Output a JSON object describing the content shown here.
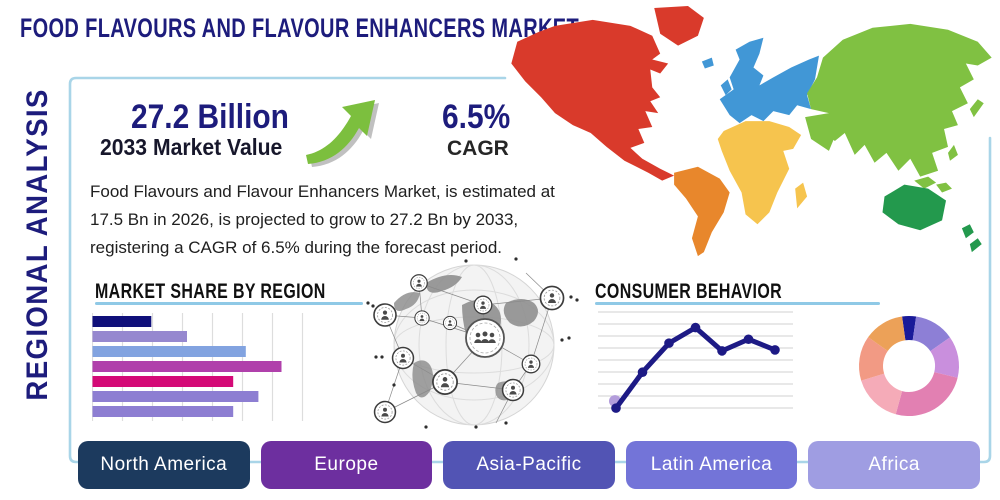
{
  "title": "FOOD FLAVOURS AND FLAVOUR ENHANCERS MARKET",
  "side_label": "REGIONAL ANALYSIS",
  "stats": {
    "market_value": "27.2 Billion",
    "market_value_label": "2033 Market Value",
    "cagr_value": "6.5%",
    "cagr_label": "CAGR"
  },
  "description": "Food Flavours and Flavour Enhancers Market, is estimated at 17.5 Bn in 2026, is projected to grow to 27.2 Bn by 2033, registering a CAGR of 6.5% during the forecast period.",
  "palette": {
    "navy": "#1d1c7c",
    "panel_border": "#a9d5e8",
    "heading_underline": "#8fc9e6",
    "arrow_green": "#7cbf3e",
    "arrow_shadow": "#969696"
  },
  "chart_data": [
    {
      "type": "bar",
      "title": "MARKET SHARE BY REGION",
      "orientation": "horizontal",
      "values": [
        28,
        45,
        73,
        90,
        67,
        79,
        67
      ],
      "bar_colors": [
        "#10107a",
        "#9688cf",
        "#82a3e0",
        "#b040ab",
        "#d40a77",
        "#8d7ed2",
        "#8d7ed2"
      ],
      "xlim": [
        0,
        105
      ],
      "grid": true,
      "tick_labels_shown": false
    },
    {
      "type": "line",
      "title": "CONSUMER BEHAVIOR",
      "x": [
        1,
        2,
        3,
        4,
        5,
        6,
        7
      ],
      "values": [
        0.4,
        4.1,
        7.1,
        8.7,
        6.3,
        7.5,
        6.4
      ],
      "ylim": [
        0,
        10
      ],
      "grid": true,
      "line_color": "#1d1a85",
      "start_dot_color": "#b39ddb",
      "tick_labels_shown": false
    },
    {
      "type": "pie",
      "style": "donut",
      "rotation": -8,
      "segments": [
        {
          "name": "navy",
          "value": 4.5,
          "color": "#1a1a99"
        },
        {
          "name": "purple",
          "value": 13,
          "color": "#8d7fd6"
        },
        {
          "name": "orchid",
          "value": 13.5,
          "color": "#c98fdd"
        },
        {
          "name": "rose-pink",
          "value": 25.5,
          "color": "#e280b2"
        },
        {
          "name": "light-pink",
          "value": 16,
          "color": "#f5abb8"
        },
        {
          "name": "salmon",
          "value": 14.5,
          "color": "#f29a84"
        },
        {
          "name": "orange",
          "value": 13,
          "color": "#eca158"
        }
      ],
      "labels_shown": false
    }
  ],
  "map": {
    "regions": [
      {
        "id": "north-america",
        "name": "North America",
        "color": "#d93a2b"
      },
      {
        "id": "south-america",
        "name": "South America",
        "color": "#e8872c"
      },
      {
        "id": "europe",
        "name": "Europe",
        "color": "#4197d6"
      },
      {
        "id": "africa",
        "name": "Africa",
        "color": "#f6c44e"
      },
      {
        "id": "asia",
        "name": "Asia",
        "color": "#80c142"
      },
      {
        "id": "oceania",
        "name": "Oceania",
        "color": "#23994d"
      }
    ]
  },
  "footer": {
    "buttons": [
      {
        "label": "North America",
        "color": "#1c3a5e"
      },
      {
        "label": "Europe",
        "color": "#6d2f9f"
      },
      {
        "label": "Asia-Pacific",
        "color": "#5254b4"
      },
      {
        "label": "Latin America",
        "color": "#7374d8"
      },
      {
        "label": "Africa",
        "color": "#9f9de2"
      }
    ]
  }
}
